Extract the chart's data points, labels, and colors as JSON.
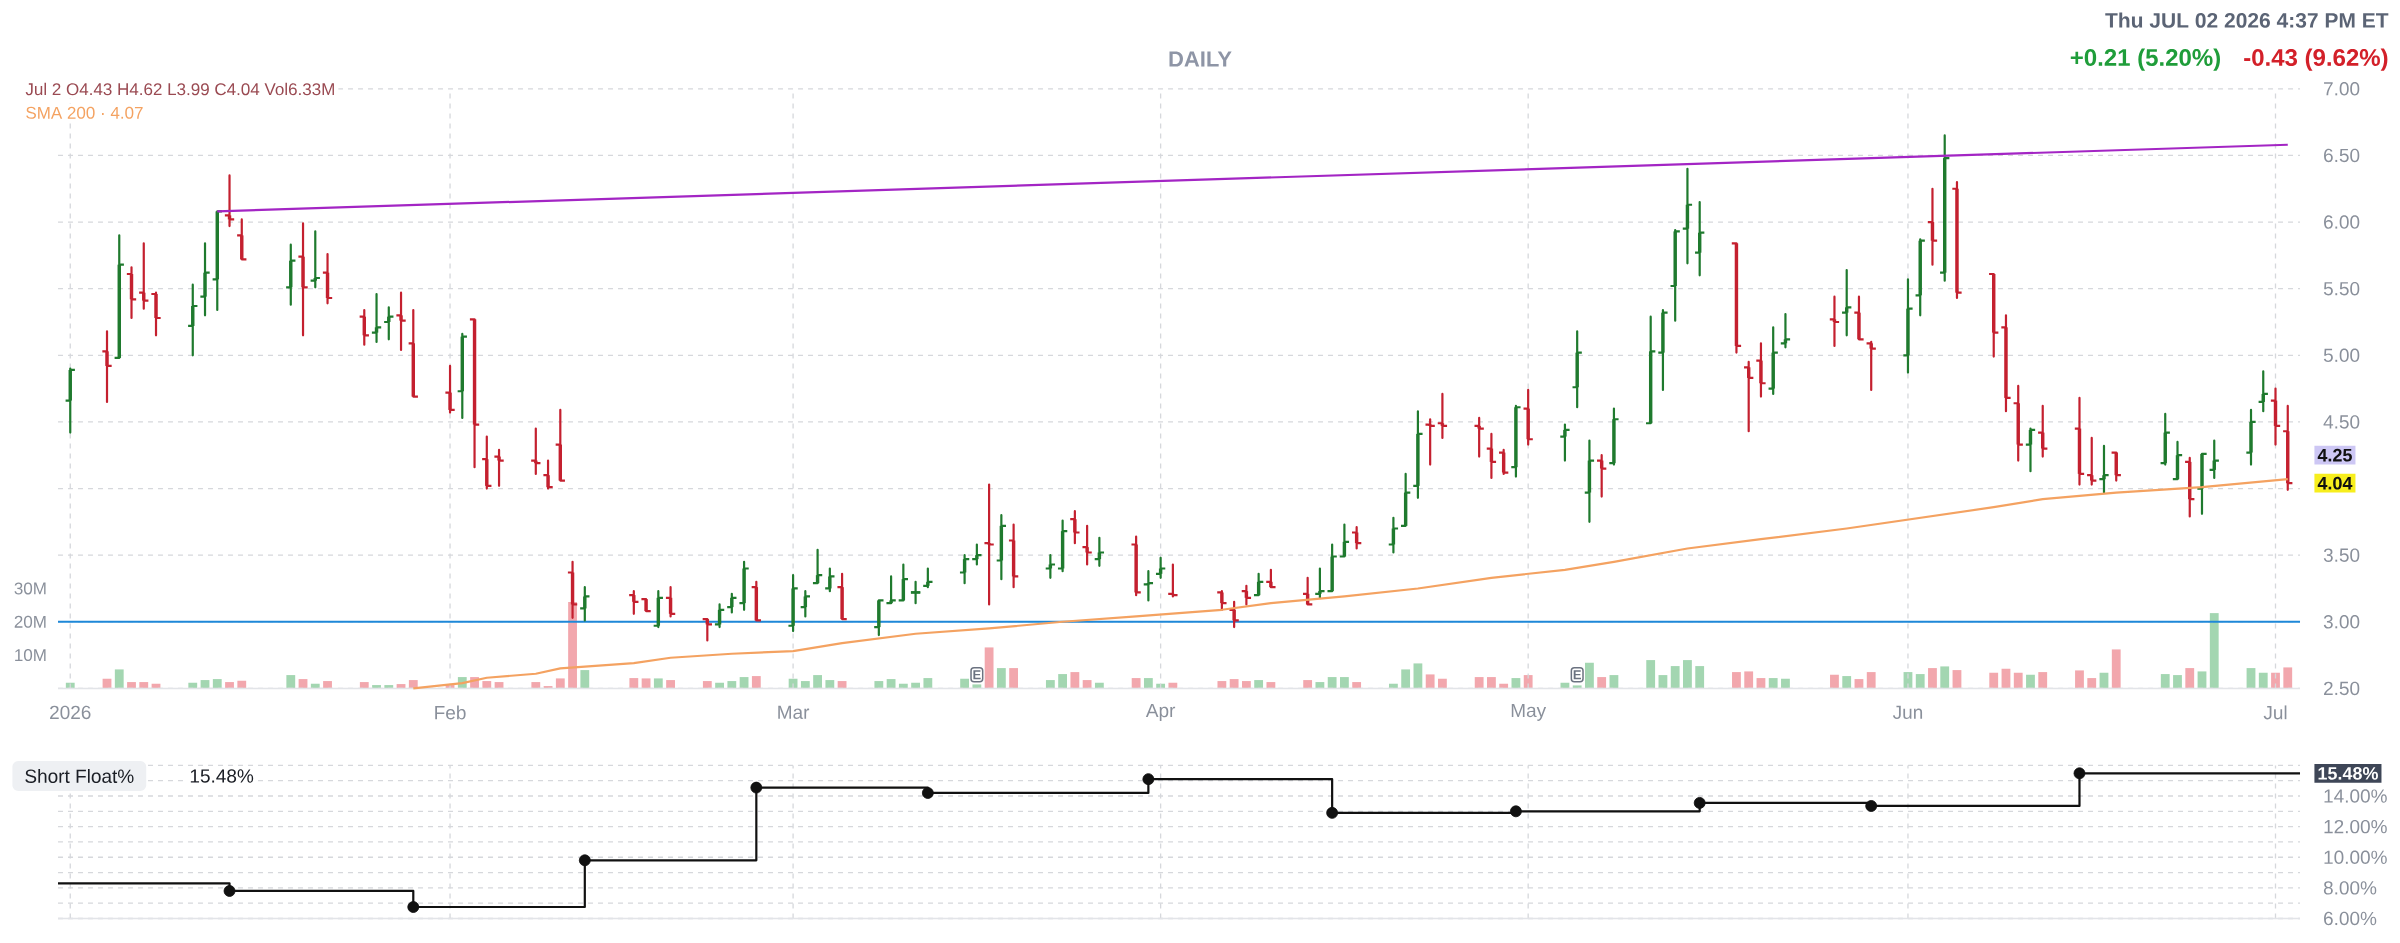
{
  "chart_data": [
    {
      "type": "candlestick",
      "title": "DAILY",
      "subtitle": "Jul 2 O4.43 H4.62 L3.99 C4.04 Vol6.33M",
      "x": [
        "2026-01-02",
        "2026-01-05",
        "2026-01-06",
        "2026-01-07",
        "2026-01-08",
        "2026-01-09",
        "2026-01-12",
        "2026-01-13",
        "2026-01-14",
        "2026-01-15",
        "2026-01-16",
        "2026-01-20",
        "2026-01-21",
        "2026-01-22",
        "2026-01-23",
        "2026-01-26",
        "2026-01-27",
        "2026-01-28",
        "2026-01-29",
        "2026-01-30",
        "2026-02-02",
        "2026-02-03",
        "2026-02-04",
        "2026-02-05",
        "2026-02-06",
        "2026-02-09",
        "2026-02-10",
        "2026-02-11",
        "2026-02-12",
        "2026-02-13",
        "2026-02-17",
        "2026-02-18",
        "2026-02-19",
        "2026-02-20",
        "2026-02-23",
        "2026-02-24",
        "2026-02-25",
        "2026-02-26",
        "2026-02-27",
        "2026-03-02",
        "2026-03-03",
        "2026-03-04",
        "2026-03-05",
        "2026-03-06",
        "2026-03-09",
        "2026-03-10",
        "2026-03-11",
        "2026-03-12",
        "2026-03-13",
        "2026-03-16",
        "2026-03-17",
        "2026-03-18",
        "2026-03-19",
        "2026-03-20",
        "2026-03-23",
        "2026-03-24",
        "2026-03-25",
        "2026-03-26",
        "2026-03-27",
        "2026-03-30",
        "2026-03-31",
        "2026-04-01",
        "2026-04-02",
        "2026-04-06",
        "2026-04-07",
        "2026-04-08",
        "2026-04-09",
        "2026-04-10",
        "2026-04-13",
        "2026-04-14",
        "2026-04-15",
        "2026-04-16",
        "2026-04-17",
        "2026-04-20",
        "2026-04-21",
        "2026-04-22",
        "2026-04-23",
        "2026-04-24",
        "2026-04-27",
        "2026-04-28",
        "2026-04-29",
        "2026-04-30",
        "2026-05-01",
        "2026-05-04",
        "2026-05-05",
        "2026-05-06",
        "2026-05-07",
        "2026-05-08",
        "2026-05-11",
        "2026-05-12",
        "2026-05-13",
        "2026-05-14",
        "2026-05-15",
        "2026-05-18",
        "2026-05-19",
        "2026-05-20",
        "2026-05-21",
        "2026-05-22",
        "2026-05-26",
        "2026-05-27",
        "2026-05-28",
        "2026-05-29",
        "2026-06-01",
        "2026-06-02",
        "2026-06-03",
        "2026-06-04",
        "2026-06-05",
        "2026-06-08",
        "2026-06-09",
        "2026-06-10",
        "2026-06-11",
        "2026-06-12",
        "2026-06-15",
        "2026-06-16",
        "2026-06-17",
        "2026-06-18",
        "2026-06-22",
        "2026-06-23",
        "2026-06-24",
        "2026-06-25",
        "2026-06-26",
        "2026-06-29",
        "2026-06-30",
        "2026-07-01",
        "2026-07-02"
      ],
      "ohlc": [
        [
          4.66,
          4.9,
          4.42,
          4.89
        ],
        [
          5.03,
          5.18,
          4.65,
          4.92
        ],
        [
          4.98,
          5.9,
          4.98,
          5.68
        ],
        [
          5.61,
          5.66,
          5.28,
          5.42
        ],
        [
          5.47,
          5.84,
          5.35,
          5.41
        ],
        [
          5.46,
          5.47,
          5.15,
          5.28
        ],
        [
          5.22,
          5.53,
          5.0,
          5.37
        ],
        [
          5.44,
          5.84,
          5.3,
          5.62
        ],
        [
          5.57,
          6.08,
          5.34,
          6.08
        ],
        [
          6.05,
          6.35,
          5.97,
          6.02
        ],
        [
          5.9,
          6.02,
          5.72,
          5.72
        ],
        [
          5.51,
          5.83,
          5.38,
          5.71
        ],
        [
          5.74,
          5.99,
          5.15,
          5.51
        ],
        [
          5.56,
          5.93,
          5.51,
          5.58
        ],
        [
          5.62,
          5.76,
          5.39,
          5.43
        ],
        [
          5.29,
          5.34,
          5.08,
          5.15
        ],
        [
          5.17,
          5.46,
          5.1,
          5.21
        ],
        [
          5.25,
          5.36,
          5.12,
          5.29
        ],
        [
          5.3,
          5.47,
          5.04,
          5.26
        ],
        [
          5.09,
          5.34,
          4.69,
          4.69
        ],
        [
          4.72,
          4.92,
          4.57,
          4.59
        ],
        [
          4.73,
          5.16,
          4.53,
          5.14
        ],
        [
          5.27,
          5.27,
          4.16,
          4.48
        ],
        [
          4.22,
          4.39,
          4.0,
          4.02
        ],
        [
          4.24,
          4.29,
          4.02,
          4.21
        ],
        [
          4.21,
          4.45,
          4.11,
          4.19
        ],
        [
          4.1,
          4.21,
          4.0,
          4.01
        ],
        [
          4.33,
          4.59,
          4.06,
          4.06
        ],
        [
          3.37,
          3.45,
          3.03,
          3.13
        ],
        [
          3.1,
          3.26,
          3.01,
          3.19
        ],
        [
          3.2,
          3.23,
          3.06,
          3.15
        ],
        [
          3.17,
          3.17,
          3.08,
          3.08
        ],
        [
          2.97,
          3.23,
          2.96,
          3.18
        ],
        [
          3.18,
          3.26,
          3.04,
          3.06
        ],
        [
          3.02,
          3.02,
          2.86,
          2.98
        ],
        [
          2.98,
          3.13,
          2.96,
          3.09
        ],
        [
          3.11,
          3.21,
          3.07,
          3.18
        ],
        [
          3.14,
          3.45,
          3.09,
          3.4
        ],
        [
          3.26,
          3.3,
          3.01,
          3.01
        ],
        [
          2.97,
          3.35,
          2.93,
          3.25
        ],
        [
          3.11,
          3.23,
          3.04,
          3.19
        ],
        [
          3.29,
          3.54,
          3.29,
          3.35
        ],
        [
          3.25,
          3.4,
          3.23,
          3.34
        ],
        [
          3.26,
          3.36,
          3.02,
          3.02
        ],
        [
          2.96,
          3.16,
          2.9,
          3.16
        ],
        [
          3.14,
          3.34,
          3.14,
          3.16
        ],
        [
          3.16,
          3.43,
          3.16,
          3.32
        ],
        [
          3.22,
          3.3,
          3.14,
          3.22
        ],
        [
          3.27,
          3.4,
          3.26,
          3.3
        ],
        [
          3.37,
          3.5,
          3.29,
          3.47
        ],
        [
          3.47,
          3.58,
          3.43,
          3.5
        ],
        [
          3.59,
          4.03,
          3.13,
          3.58
        ],
        [
          3.46,
          3.8,
          3.32,
          3.72
        ],
        [
          3.61,
          3.73,
          3.26,
          3.34
        ],
        [
          3.4,
          3.5,
          3.33,
          3.43
        ],
        [
          3.4,
          3.76,
          3.38,
          3.68
        ],
        [
          3.77,
          3.83,
          3.59,
          3.67
        ],
        [
          3.56,
          3.72,
          3.43,
          3.52
        ],
        [
          3.47,
          3.63,
          3.42,
          3.52
        ],
        [
          3.58,
          3.64,
          3.2,
          3.22
        ],
        [
          3.28,
          3.38,
          3.16,
          3.29
        ],
        [
          3.36,
          3.48,
          3.33,
          3.4
        ],
        [
          3.21,
          3.43,
          3.19,
          3.2
        ],
        [
          3.22,
          3.23,
          3.09,
          3.14
        ],
        [
          3.09,
          3.15,
          2.96,
          3.01
        ],
        [
          3.23,
          3.27,
          3.13,
          3.18
        ],
        [
          3.2,
          3.36,
          3.2,
          3.3
        ],
        [
          3.3,
          3.39,
          3.26,
          3.26
        ],
        [
          3.21,
          3.33,
          3.13,
          3.13
        ],
        [
          3.21,
          3.4,
          3.18,
          3.23
        ],
        [
          3.23,
          3.58,
          3.23,
          3.49
        ],
        [
          3.49,
          3.73,
          3.49,
          3.6
        ],
        [
          3.67,
          3.71,
          3.55,
          3.59
        ],
        [
          3.58,
          3.78,
          3.52,
          3.7
        ],
        [
          3.72,
          4.11,
          3.72,
          3.97
        ],
        [
          4.02,
          4.58,
          3.93,
          4.41
        ],
        [
          4.48,
          4.52,
          4.18,
          4.47
        ],
        [
          4.49,
          4.71,
          4.38,
          4.47
        ],
        [
          4.47,
          4.53,
          4.24,
          4.45
        ],
        [
          4.3,
          4.41,
          4.08,
          4.2
        ],
        [
          4.27,
          4.29,
          4.11,
          4.12
        ],
        [
          4.16,
          4.62,
          4.09,
          4.61
        ],
        [
          4.6,
          4.74,
          4.33,
          4.37
        ],
        [
          4.39,
          4.48,
          4.21,
          4.44
        ],
        [
          4.76,
          5.18,
          4.61,
          5.02
        ],
        [
          3.97,
          4.36,
          3.75,
          4.21
        ],
        [
          4.21,
          4.25,
          3.94,
          4.15
        ],
        [
          4.19,
          4.6,
          4.18,
          4.52
        ],
        [
          4.49,
          5.29,
          4.49,
          5.03
        ],
        [
          5.02,
          5.34,
          4.74,
          5.32
        ],
        [
          5.52,
          5.94,
          5.26,
          5.93
        ],
        [
          5.95,
          6.4,
          5.69,
          6.13
        ],
        [
          5.77,
          6.15,
          5.6,
          5.92
        ],
        [
          5.84,
          5.84,
          5.02,
          5.07
        ],
        [
          4.91,
          4.95,
          4.43,
          4.83
        ],
        [
          4.96,
          5.09,
          4.69,
          4.79
        ],
        [
          4.75,
          5.21,
          4.71,
          5.02
        ],
        [
          5.09,
          5.31,
          5.06,
          5.12
        ],
        [
          5.27,
          5.44,
          5.07,
          5.25
        ],
        [
          5.32,
          5.64,
          5.15,
          5.36
        ],
        [
          5.32,
          5.44,
          5.12,
          5.12
        ],
        [
          5.09,
          5.1,
          4.74,
          5.05
        ],
        [
          5.0,
          5.57,
          4.87,
          5.35
        ],
        [
          5.45,
          5.87,
          5.3,
          5.86
        ],
        [
          6.0,
          6.25,
          5.68,
          5.86
        ],
        [
          5.62,
          6.65,
          5.56,
          6.48
        ],
        [
          6.25,
          6.3,
          5.43,
          5.47
        ],
        [
          5.61,
          5.61,
          4.99,
          5.17
        ],
        [
          5.21,
          5.3,
          4.58,
          4.68
        ],
        [
          4.64,
          4.77,
          4.21,
          4.33
        ],
        [
          4.33,
          4.45,
          4.13,
          4.44
        ],
        [
          4.42,
          4.62,
          4.24,
          4.3
        ],
        [
          4.45,
          4.68,
          4.03,
          4.11
        ],
        [
          4.1,
          4.38,
          4.03,
          4.06
        ],
        [
          4.07,
          4.32,
          3.97,
          4.1
        ],
        [
          4.27,
          4.27,
          4.06,
          4.1
        ],
        [
          4.19,
          4.56,
          4.18,
          4.42
        ],
        [
          4.07,
          4.35,
          4.07,
          4.25
        ],
        [
          4.2,
          4.23,
          3.79,
          3.92
        ],
        [
          4.0,
          4.26,
          3.81,
          4.26
        ],
        [
          4.14,
          4.36,
          4.08,
          4.21
        ],
        [
          4.27,
          4.59,
          4.18,
          4.5
        ],
        [
          4.65,
          4.88,
          4.58,
          4.71
        ],
        [
          4.66,
          4.75,
          4.33,
          4.47
        ],
        [
          4.43,
          4.62,
          3.99,
          4.04
        ]
      ],
      "colors": [
        "#1f7a2e",
        "#c4202f",
        "#1f7a2e",
        "#c4202f",
        "#c4202f",
        "#c4202f",
        "#1f7a2e",
        "#1f7a2e",
        "#1f7a2e",
        "#c4202f",
        "#c4202f",
        "#1f7a2e",
        "#c4202f",
        "#1f7a2e",
        "#c4202f",
        "#c4202f",
        "#1f7a2e",
        "#1f7a2e",
        "#c4202f",
        "#c4202f",
        "#c4202f",
        "#1f7a2e",
        "#c4202f",
        "#c4202f",
        "#c4202f",
        "#c4202f",
        "#c4202f",
        "#c4202f",
        "#c4202f",
        "#1f7a2e",
        "#c4202f",
        "#c4202f",
        "#1f7a2e",
        "#c4202f",
        "#c4202f",
        "#1f7a2e",
        "#1f7a2e",
        "#1f7a2e",
        "#c4202f",
        "#1f7a2e",
        "#1f7a2e",
        "#1f7a2e",
        "#1f7a2e",
        "#c4202f",
        "#1f7a2e",
        "#1f7a2e",
        "#1f7a2e",
        "#1f7a2e",
        "#1f7a2e",
        "#1f7a2e",
        "#1f7a2e",
        "#c4202f",
        "#1f7a2e",
        "#c4202f",
        "#1f7a2e",
        "#1f7a2e",
        "#c4202f",
        "#c4202f",
        "#1f7a2e",
        "#c4202f",
        "#1f7a2e",
        "#1f7a2e",
        "#c4202f",
        "#c4202f",
        "#c4202f",
        "#c4202f",
        "#1f7a2e",
        "#c4202f",
        "#c4202f",
        "#1f7a2e",
        "#1f7a2e",
        "#1f7a2e",
        "#c4202f",
        "#1f7a2e",
        "#1f7a2e",
        "#1f7a2e",
        "#c4202f",
        "#c4202f",
        "#c4202f",
        "#c4202f",
        "#c4202f",
        "#1f7a2e",
        "#c4202f",
        "#1f7a2e",
        "#1f7a2e",
        "#1f7a2e",
        "#c4202f",
        "#1f7a2e",
        "#1f7a2e",
        "#1f7a2e",
        "#1f7a2e",
        "#1f7a2e",
        "#1f7a2e",
        "#c4202f",
        "#c4202f",
        "#c4202f",
        "#1f7a2e",
        "#1f7a2e",
        "#c4202f",
        "#1f7a2e",
        "#c4202f",
        "#c4202f",
        "#1f7a2e",
        "#1f7a2e",
        "#c4202f",
        "#1f7a2e",
        "#c4202f",
        "#c4202f",
        "#c4202f",
        "#c4202f",
        "#1f7a2e",
        "#c4202f",
        "#c4202f",
        "#c4202f",
        "#1f7a2e",
        "#c4202f",
        "#1f7a2e",
        "#1f7a2e",
        "#c4202f",
        "#1f7a2e",
        "#1f7a2e",
        "#1f7a2e",
        "#1f7a2e",
        "#c4202f",
        "#c4202f"
      ],
      "series": [
        {
          "type": "bar",
          "axis": "y2",
          "values": [
            1.7,
            2.9,
            5.7,
            1.9,
            1.9,
            1.4,
            1.7,
            2.5,
            2.8,
            1.9,
            2.3,
            4.0,
            2.8,
            1.4,
            2.2,
            1.9,
            1.0,
            1.0,
            1.3,
            2.5,
            1.0,
            3.4,
            3.4,
            2.2,
            1.9,
            1.9,
            0.7,
            3.0,
            25.9,
            5.5,
            3.1,
            3.0,
            3.0,
            2.5,
            2.2,
            1.7,
            2.2,
            3.4,
            3.7,
            2.9,
            2.2,
            4.0,
            2.5,
            2.2,
            2.2,
            2.8,
            1.4,
            1.7,
            3.1,
            2.9,
            1.2,
            12.3,
            6.1,
            6.1,
            2.5,
            4.3,
            4.9,
            2.5,
            1.7,
            3.1,
            3.1,
            1.4,
            1.7,
            2.2,
            2.8,
            2.2,
            2.5,
            1.9,
            2.5,
            1.9,
            3.4,
            3.4,
            1.9,
            1.4,
            5.7,
            7.5,
            4.2,
            2.9,
            3.4,
            3.4,
            1.4,
            3.1,
            4.0,
            1.7,
            0.9,
            7.7,
            3.4,
            4.0,
            8.5,
            4.0,
            6.7,
            8.5,
            6.7,
            4.9,
            5.1,
            3.1,
            3.1,
            2.9,
            4.1,
            3.7,
            2.8,
            4.9,
            4.9,
            4.3,
            6.1,
            6.6,
            5.5,
            4.7,
            5.9,
            4.7,
            4.1,
            4.9,
            5.4,
            3.1,
            4.7,
            11.7,
            4.3,
            4.0,
            6.1,
            5.1,
            22.6,
            6.1,
            4.7,
            4.7,
            6.3
          ],
          "colors": [
            "#a3d6b1",
            "#f2a7ad",
            "#a3d6b1",
            "#f2a7ad",
            "#f2a7ad",
            "#f2a7ad",
            "#a3d6b1",
            "#a3d6b1",
            "#a3d6b1",
            "#f2a7ad",
            "#f2a7ad",
            "#a3d6b1",
            "#f2a7ad",
            "#a3d6b1",
            "#f2a7ad",
            "#f2a7ad",
            "#a3d6b1",
            "#a3d6b1",
            "#f2a7ad",
            "#f2a7ad",
            "#f2a7ad",
            "#a3d6b1",
            "#f2a7ad",
            "#f2a7ad",
            "#f2a7ad",
            "#f2a7ad",
            "#f2a7ad",
            "#f2a7ad",
            "#f2a7ad",
            "#a3d6b1",
            "#f2a7ad",
            "#f2a7ad",
            "#a3d6b1",
            "#f2a7ad",
            "#f2a7ad",
            "#a3d6b1",
            "#a3d6b1",
            "#a3d6b1",
            "#f2a7ad",
            "#a3d6b1",
            "#a3d6b1",
            "#a3d6b1",
            "#a3d6b1",
            "#f2a7ad",
            "#a3d6b1",
            "#a3d6b1",
            "#a3d6b1",
            "#a3d6b1",
            "#a3d6b1",
            "#a3d6b1",
            "#a3d6b1",
            "#f2a7ad",
            "#a3d6b1",
            "#f2a7ad",
            "#a3d6b1",
            "#a3d6b1",
            "#f2a7ad",
            "#f2a7ad",
            "#a3d6b1",
            "#f2a7ad",
            "#a3d6b1",
            "#a3d6b1",
            "#f2a7ad",
            "#f2a7ad",
            "#f2a7ad",
            "#f2a7ad",
            "#a3d6b1",
            "#f2a7ad",
            "#f2a7ad",
            "#a3d6b1",
            "#a3d6b1",
            "#a3d6b1",
            "#f2a7ad",
            "#a3d6b1",
            "#a3d6b1",
            "#a3d6b1",
            "#f2a7ad",
            "#f2a7ad",
            "#f2a7ad",
            "#f2a7ad",
            "#f2a7ad",
            "#a3d6b1",
            "#f2a7ad",
            "#a3d6b1",
            "#a3d6b1",
            "#a3d6b1",
            "#f2a7ad",
            "#a3d6b1",
            "#a3d6b1",
            "#a3d6b1",
            "#a3d6b1",
            "#a3d6b1",
            "#a3d6b1",
            "#f2a7ad",
            "#f2a7ad",
            "#f2a7ad",
            "#a3d6b1",
            "#a3d6b1",
            "#f2a7ad",
            "#a3d6b1",
            "#f2a7ad",
            "#f2a7ad",
            "#a3d6b1",
            "#a3d6b1",
            "#f2a7ad",
            "#a3d6b1",
            "#f2a7ad",
            "#f2a7ad",
            "#f2a7ad",
            "#f2a7ad",
            "#a3d6b1",
            "#f2a7ad",
            "#f2a7ad",
            "#f2a7ad",
            "#a3d6b1",
            "#f2a7ad",
            "#a3d6b1",
            "#a3d6b1",
            "#f2a7ad",
            "#a3d6b1",
            "#a3d6b1",
            "#a3d6b1",
            "#a3d6b1",
            "#f2a7ad",
            "#f2a7ad"
          ]
        },
        {
          "type": "line",
          "name": "SMA 200 · 4.07",
          "color": "#f4a261",
          "x": [
            "2026-01-30",
            "2026-02-03",
            "2026-02-05",
            "2026-02-09",
            "2026-02-11",
            "2026-02-17",
            "2026-02-20",
            "2026-02-25",
            "2026-03-02",
            "2026-03-06",
            "2026-03-12",
            "2026-03-18",
            "2026-03-24",
            "2026-03-30",
            "2026-04-06",
            "2026-04-10",
            "2026-04-16",
            "2026-04-22",
            "2026-04-28",
            "2026-05-04",
            "2026-05-08",
            "2026-05-14",
            "2026-05-20",
            "2026-05-27",
            "2026-06-02",
            "2026-06-08",
            "2026-06-12",
            "2026-06-18",
            "2026-06-25",
            "2026-07-02"
          ],
          "values": [
            2.5,
            2.54,
            2.58,
            2.61,
            2.65,
            2.69,
            2.73,
            2.76,
            2.78,
            2.84,
            2.91,
            2.95,
            3.0,
            3.04,
            3.09,
            3.14,
            3.19,
            3.25,
            3.33,
            3.39,
            3.45,
            3.55,
            3.62,
            3.7,
            3.78,
            3.86,
            3.92,
            3.97,
            4.01,
            4.07
          ]
        },
        {
          "type": "line",
          "color": "#a325c4",
          "x": [
            "2026-01-14",
            "2026-07-02"
          ],
          "values": [
            6.08,
            6.58
          ]
        }
      ],
      "xlim": [
        "2026-01-01",
        "2026-07-03"
      ],
      "xticks": [
        {
          "value": "2026-01-02",
          "label": "2026"
        },
        {
          "value": "2026-02-02",
          "label": "Feb"
        },
        {
          "value": "2026-03-02",
          "label": "Mar"
        },
        {
          "value": "2026-04-01",
          "label": "Apr"
        },
        {
          "value": "2026-05-01",
          "label": "May"
        },
        {
          "value": "2026-06-01",
          "label": "Jun"
        },
        {
          "value": "2026-07-01",
          "label": "Jul"
        }
      ],
      "ylim": [
        2.5,
        7.0
      ],
      "yticks": [
        {
          "value": 2.5,
          "label": "2.50"
        },
        {
          "value": 3,
          "label": "3.00"
        },
        {
          "value": 3.5,
          "label": "3.50"
        },
        {
          "value": 4,
          "label": null
        },
        {
          "value": 4.5,
          "label": "4.50"
        },
        {
          "value": 5,
          "label": "5.00"
        },
        {
          "value": 5.5,
          "label": "5.50"
        },
        {
          "value": 6,
          "label": "6.00"
        },
        {
          "value": 6.5,
          "label": "6.50"
        },
        {
          "value": 7,
          "label": "7.00"
        }
      ],
      "y2lim": [
        0,
        180
      ],
      "y2ticks": [
        {
          "value": 10,
          "label": "10M"
        },
        {
          "value": 20,
          "label": "20M"
        },
        {
          "value": 30,
          "label": "30M"
        }
      ],
      "ref_lines": [
        {
          "axis": "y",
          "value": 3,
          "color": "#1e88d8"
        }
      ],
      "annotations": [
        "Thu JUL 02 2026 4:37 PM ET",
        "+0.21 (5.20%)",
        "-0.43 (9.62%)",
        {
          "text": "E",
          "x": "2026-03-17"
        },
        {
          "text": "E",
          "x": "2026-05-05"
        },
        "4.25",
        "4.04"
      ],
      "grid": true,
      "legend": "top left"
    },
    {
      "type": "step",
      "title": "Short Float%",
      "series": [
        {
          "type": "step",
          "color": "#111111",
          "x": [
            "2026-01-01",
            "2026-01-15",
            "2026-01-30",
            "2026-02-13",
            "2026-02-27",
            "2026-03-13",
            "2026-03-31",
            "2026-04-15",
            "2026-04-30",
            "2026-05-15",
            "2026-05-29",
            "2026-06-15",
            "2026-07-03"
          ],
          "values": [
            8.3,
            7.8,
            6.75,
            9.8,
            14.55,
            14.2,
            15.1,
            12.9,
            13.0,
            13.55,
            13.35,
            15.48,
            15.48
          ]
        },
        {
          "type": "scatter",
          "color": "#111111",
          "marker": "circle",
          "x": [
            "2026-01-15",
            "2026-01-30",
            "2026-02-13",
            "2026-02-27",
            "2026-03-13",
            "2026-03-31",
            "2026-04-15",
            "2026-04-30",
            "2026-05-15",
            "2026-05-29",
            "2026-06-15"
          ],
          "values": [
            7.8,
            6.75,
            9.8,
            14.55,
            14.2,
            15.1,
            12.9,
            13.0,
            13.55,
            13.35,
            15.48
          ]
        }
      ],
      "xlim": [
        "2026-01-01",
        "2026-07-03"
      ],
      "xticks": [
        {
          "value": "2026-01-02",
          "label": null
        },
        {
          "value": "2026-02-02",
          "label": null
        },
        {
          "value": "2026-03-02",
          "label": null
        },
        {
          "value": "2026-04-01",
          "label": null
        },
        {
          "value": "2026-05-01",
          "label": null
        },
        {
          "value": "2026-06-01",
          "label": null
        },
        {
          "value": "2026-07-01",
          "label": null
        }
      ],
      "ylim": [
        6,
        16
      ],
      "yticks": [
        {
          "value": 6,
          "label": "6.00%"
        },
        {
          "value": 7,
          "label": null
        },
        {
          "value": 8,
          "label": "8.00%"
        },
        {
          "value": 9,
          "label": null
        },
        {
          "value": 10,
          "label": "10.00%"
        },
        {
          "value": 11,
          "label": null
        },
        {
          "value": 12,
          "label": "12.00%"
        },
        {
          "value": 13,
          "label": null
        },
        {
          "value": 14,
          "label": "14.00%"
        },
        {
          "value": 15,
          "label": null
        },
        {
          "value": 16,
          "label": null
        }
      ],
      "annotations": [
        "15.48%",
        "15.48%"
      ],
      "grid": true,
      "tick_labels": "y"
    }
  ]
}
